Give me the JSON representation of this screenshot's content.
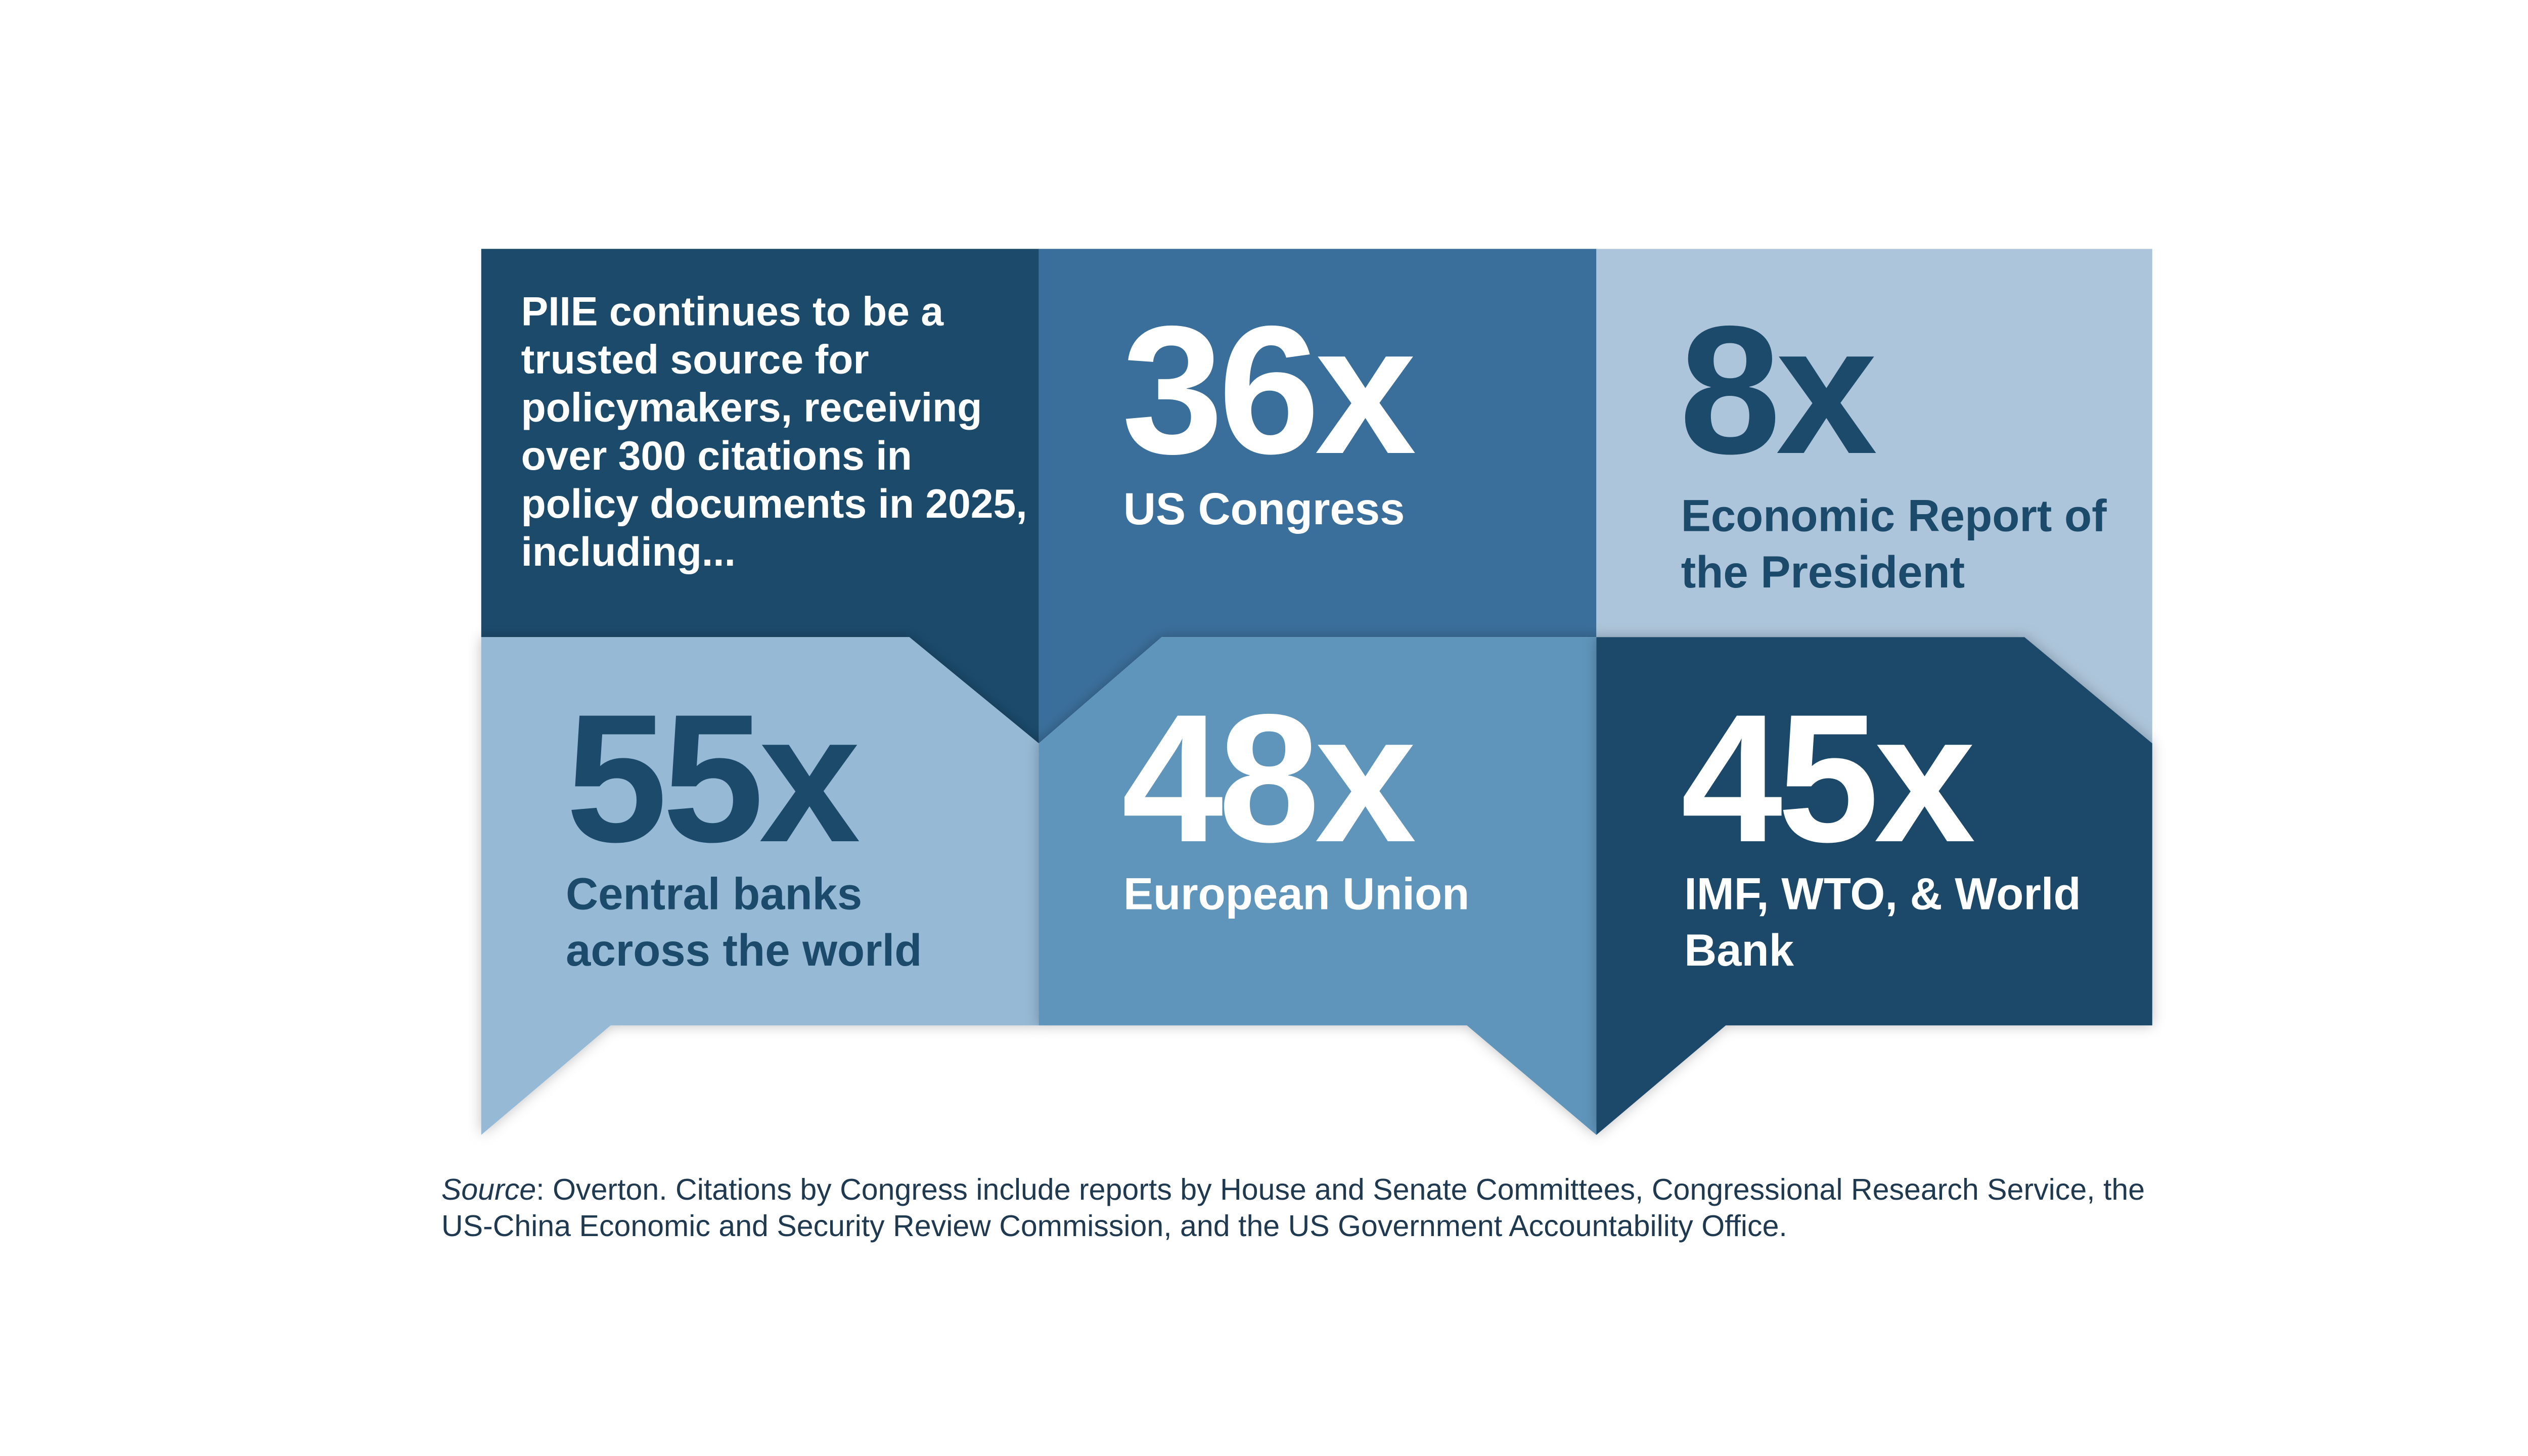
{
  "intro": "PIIE continues to be a trusted source for policymakers, receiving over 300 citations in policy documents in 2025, including...",
  "stats": [
    {
      "value": "36x",
      "label": "US Congress",
      "color": "#3b6f9b",
      "text_color": "#ffffff"
    },
    {
      "value": "8x",
      "label": "Economic Report of the President",
      "color": "#adc5da",
      "text_color": "#1b4a6b"
    },
    {
      "value": "55x",
      "label": "Central banks across the world",
      "color": "#96b9d5",
      "text_color": "#1b4a6b"
    },
    {
      "value": "48x",
      "label": "European Union",
      "color": "#5e95bb",
      "text_color": "#ffffff"
    },
    {
      "value": "45x",
      "label": "IMF, WTO, & World Bank",
      "color": "#1b4a6b",
      "text_color": "#ffffff"
    }
  ],
  "intro_color": "#1b4a6b",
  "source": {
    "label": "Source",
    "text": ": Overton. Citations by Congress include reports by House and Senate Committees, Congressional Research Service, the US-China Economic and Security Review Commission, and the US Government Accountability Office."
  }
}
